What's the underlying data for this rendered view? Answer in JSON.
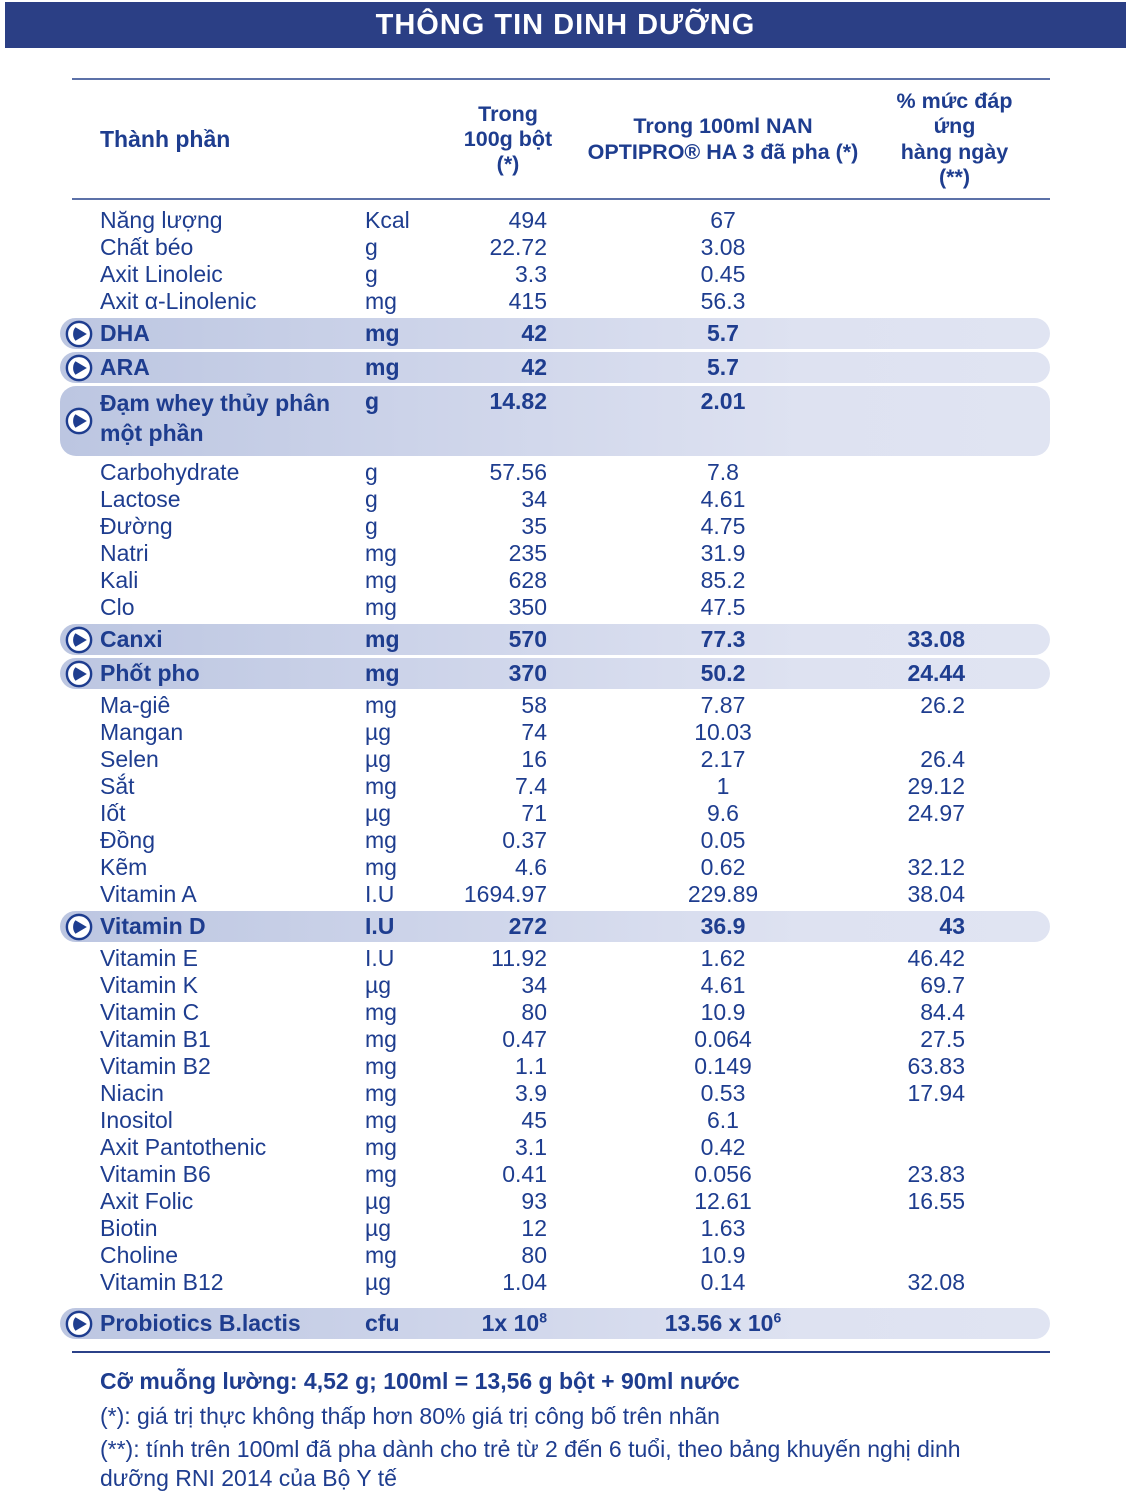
{
  "banner": {
    "title": "THÔNG TIN DINH DƯỠNG",
    "bg_color": "#2b3f85",
    "text_color": "#ffffff"
  },
  "colors": {
    "text_navy": "#1e3d8f",
    "pill_gradient_start": "#bcc6e1",
    "pill_gradient_end": "#e0e4f2",
    "header_rule": "#5c71a8",
    "bottom_rule": "#2b4189"
  },
  "table": {
    "headers": {
      "component": "Thành phần",
      "per100g": "Trong\n100g bột (*)",
      "per100ml": "Trong 100ml NAN\nOPTIPRO® HA 3 đã pha (*)",
      "daily": "% mức đáp ứng\nhàng ngày (**)"
    },
    "bullet_icon": "play-circle-arrow",
    "rows": [
      {
        "name": "Năng lượng",
        "unit": "Kcal",
        "per100g": "494",
        "per100ml": "67",
        "daily": "",
        "highlight": false
      },
      {
        "name": "Chất béo",
        "unit": "g",
        "per100g": "22.72",
        "per100ml": "3.08",
        "daily": "",
        "highlight": false
      },
      {
        "name": "Axit Linoleic",
        "unit": "g",
        "per100g": "3.3",
        "per100ml": "0.45",
        "daily": "",
        "highlight": false
      },
      {
        "name": "Axit α-Linolenic",
        "unit": "mg",
        "per100g": "415",
        "per100ml": "56.3",
        "daily": "",
        "highlight": false
      },
      {
        "name": "DHA",
        "unit": "mg",
        "per100g": "42",
        "per100ml": "5.7",
        "daily": "",
        "highlight": true
      },
      {
        "name": "ARA",
        "unit": "mg",
        "per100g": "42",
        "per100ml": "5.7",
        "daily": "",
        "highlight": true
      },
      {
        "name": "Đạm whey thủy phân một phần",
        "unit": "g",
        "per100g": "14.82",
        "per100ml": "2.01",
        "daily": "",
        "highlight": true,
        "two_line": true
      },
      {
        "name": "Carbohydrate",
        "unit": "g",
        "per100g": "57.56",
        "per100ml": "7.8",
        "daily": "",
        "highlight": false
      },
      {
        "name": "Lactose",
        "unit": "g",
        "per100g": "34",
        "per100ml": "4.61",
        "daily": "",
        "highlight": false
      },
      {
        "name": "Đường",
        "unit": "g",
        "per100g": "35",
        "per100ml": "4.75",
        "daily": "",
        "highlight": false
      },
      {
        "name": "Natri",
        "unit": "mg",
        "per100g": "235",
        "per100ml": "31.9",
        "daily": "",
        "highlight": false
      },
      {
        "name": "Kali",
        "unit": "mg",
        "per100g": "628",
        "per100ml": "85.2",
        "daily": "",
        "highlight": false
      },
      {
        "name": "Clo",
        "unit": "mg",
        "per100g": "350",
        "per100ml": "47.5",
        "daily": "",
        "highlight": false
      },
      {
        "name": "Canxi",
        "unit": "mg",
        "per100g": "570",
        "per100ml": "77.3",
        "daily": "33.08",
        "highlight": true
      },
      {
        "name": "Phốt pho",
        "unit": "mg",
        "per100g": "370",
        "per100ml": "50.2",
        "daily": "24.44",
        "highlight": true
      },
      {
        "name": "Ma-giê",
        "unit": "mg",
        "per100g": "58",
        "per100ml": "7.87",
        "daily": "26.2",
        "highlight": false
      },
      {
        "name": "Mangan",
        "unit": "µg",
        "per100g": "74",
        "per100ml": "10.03",
        "daily": "",
        "highlight": false
      },
      {
        "name": "Selen",
        "unit": "µg",
        "per100g": "16",
        "per100ml": "2.17",
        "daily": "26.4",
        "highlight": false
      },
      {
        "name": "Sắt",
        "unit": "mg",
        "per100g": "7.4",
        "per100ml": "1",
        "daily": "29.12",
        "highlight": false
      },
      {
        "name": "Iốt",
        "unit": "µg",
        "per100g": "71",
        "per100ml": "9.6",
        "daily": "24.97",
        "highlight": false
      },
      {
        "name": "Đồng",
        "unit": "mg",
        "per100g": "0.37",
        "per100ml": "0.05",
        "daily": "",
        "highlight": false
      },
      {
        "name": "Kẽm",
        "unit": "mg",
        "per100g": "4.6",
        "per100ml": "0.62",
        "daily": "32.12",
        "highlight": false
      },
      {
        "name": "Vitamin A",
        "unit": "I.U",
        "per100g": "1694.97",
        "per100ml": "229.89",
        "daily": "38.04",
        "highlight": false
      },
      {
        "name": "Vitamin D",
        "unit": "I.U",
        "per100g": "272",
        "per100ml": "36.9",
        "daily": "43",
        "highlight": true
      },
      {
        "name": "Vitamin E",
        "unit": "I.U",
        "per100g": "11.92",
        "per100ml": "1.62",
        "daily": "46.42",
        "highlight": false
      },
      {
        "name": "Vitamin K",
        "unit": "µg",
        "per100g": "34",
        "per100ml": "4.61",
        "daily": "69.7",
        "highlight": false
      },
      {
        "name": "Vitamin C",
        "unit": "mg",
        "per100g": "80",
        "per100ml": "10.9",
        "daily": "84.4",
        "highlight": false
      },
      {
        "name": "Vitamin B1",
        "unit": "mg",
        "per100g": "0.47",
        "per100ml": "0.064",
        "daily": "27.5",
        "highlight": false
      },
      {
        "name": "Vitamin B2",
        "unit": "mg",
        "per100g": "1.1",
        "per100ml": "0.149",
        "daily": "63.83",
        "highlight": false
      },
      {
        "name": "Niacin",
        "unit": "mg",
        "per100g": "3.9",
        "per100ml": "0.53",
        "daily": "17.94",
        "highlight": false
      },
      {
        "name": "Inositol",
        "unit": "mg",
        "per100g": "45",
        "per100ml": "6.1",
        "daily": "",
        "highlight": false
      },
      {
        "name": "Axit Pantothenic",
        "unit": "mg",
        "per100g": "3.1",
        "per100ml": "0.42",
        "daily": "",
        "highlight": false
      },
      {
        "name": "Vitamin B6",
        "unit": "mg",
        "per100g": "0.41",
        "per100ml": "0.056",
        "daily": "23.83",
        "highlight": false
      },
      {
        "name": "Axit Folic",
        "unit": "µg",
        "per100g": "93",
        "per100ml": "12.61",
        "daily": "16.55",
        "highlight": false
      },
      {
        "name": "Biotin",
        "unit": "µg",
        "per100g": "12",
        "per100ml": "1.63",
        "daily": "",
        "highlight": false
      },
      {
        "name": "Choline",
        "unit": "mg",
        "per100g": "80",
        "per100ml": "10.9",
        "daily": "",
        "highlight": false
      },
      {
        "name": "Vitamin B12",
        "unit": "µg",
        "per100g": "1.04",
        "per100ml": "0.14",
        "daily": "32.08",
        "highlight": false
      },
      {
        "name": "Probiotics B.lactis",
        "unit": "cfu",
        "per100g": "1x 10",
        "per100g_sup": "8",
        "per100ml": "13.56 x 10",
        "per100ml_sup": "6",
        "daily": "",
        "highlight": true,
        "probiotics": true
      }
    ]
  },
  "footer": {
    "scoop": "Cỡ muỗng lường: 4,52 g; 100ml = 13,56 g bột + 90ml nước",
    "note1": "(*): giá trị thực không thấp hơn 80% giá trị công bố trên nhãn",
    "note2": "(**): tính trên 100ml đã pha dành cho trẻ từ 2 đến 6 tuổi, theo bảng khuyến nghị dinh dưỡng RNI 2014 của Bộ Y tế"
  }
}
